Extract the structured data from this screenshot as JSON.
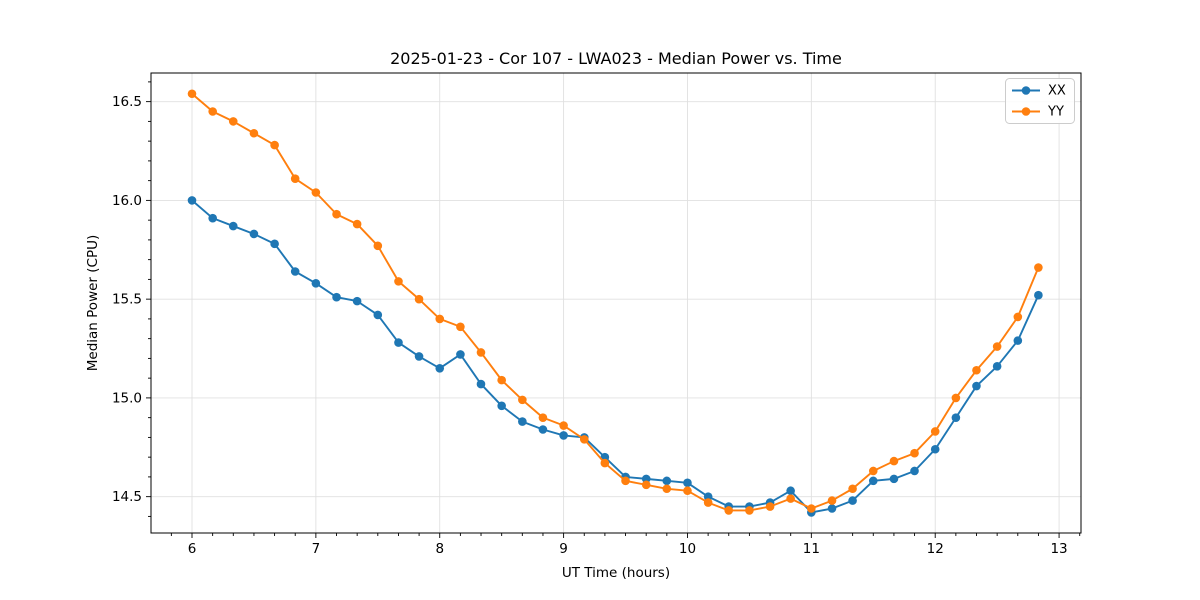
{
  "chart_data": {
    "type": "line",
    "title": "2025-01-23 - Cor 107 - LWA023 - Median Power vs. Time",
    "xlabel": "UT Time (hours)",
    "ylabel": "Median Power (CPU)",
    "grid": true,
    "legend_position": "upper right",
    "xlim": [
      5.669,
      13.177
    ],
    "ylim": [
      14.316,
      16.645
    ],
    "x_ticks": [
      6,
      7,
      8,
      9,
      10,
      11,
      12,
      13
    ],
    "x_tick_labels": [
      "6",
      "7",
      "8",
      "9",
      "10",
      "11",
      "12",
      "13"
    ],
    "y_ticks": [
      14.5,
      15.0,
      15.5,
      16.0,
      16.5
    ],
    "y_tick_labels": [
      "14.5",
      "15.0",
      "15.5",
      "16.0",
      "16.5"
    ],
    "x_minor_step": 0.166667,
    "y_minor_step": 0.1,
    "x": [
      6.0,
      6.167,
      6.333,
      6.5,
      6.667,
      6.833,
      7.0,
      7.167,
      7.333,
      7.5,
      7.667,
      7.833,
      8.0,
      8.167,
      8.333,
      8.5,
      8.667,
      8.833,
      9.0,
      9.167,
      9.333,
      9.5,
      9.667,
      9.833,
      10.0,
      10.167,
      10.333,
      10.5,
      10.667,
      10.833,
      11.0,
      11.167,
      11.333,
      11.5,
      11.667,
      11.833,
      12.0,
      12.167,
      12.333,
      12.5,
      12.667,
      12.833
    ],
    "series": [
      {
        "name": "XX",
        "color": "#1f77b4",
        "values": [
          16.0,
          15.91,
          15.87,
          15.83,
          15.78,
          15.64,
          15.58,
          15.51,
          15.49,
          15.42,
          15.28,
          15.21,
          15.15,
          15.22,
          15.07,
          14.96,
          14.88,
          14.84,
          14.81,
          14.8,
          14.7,
          14.6,
          14.59,
          14.58,
          14.57,
          14.5,
          14.45,
          14.45,
          14.47,
          14.53,
          14.42,
          14.44,
          14.48,
          14.58,
          14.59,
          14.63,
          14.74,
          14.9,
          15.06,
          15.16,
          15.29,
          15.52
        ]
      },
      {
        "name": "YY",
        "color": "#ff7f0e",
        "values": [
          16.54,
          16.45,
          16.4,
          16.34,
          16.28,
          16.11,
          16.04,
          15.93,
          15.88,
          15.77,
          15.59,
          15.5,
          15.4,
          15.36,
          15.23,
          15.09,
          14.99,
          14.9,
          14.86,
          14.79,
          14.67,
          14.58,
          14.56,
          14.54,
          14.53,
          14.47,
          14.43,
          14.43,
          14.45,
          14.49,
          14.44,
          14.48,
          14.54,
          14.63,
          14.68,
          14.72,
          14.83,
          15.0,
          15.14,
          15.26,
          15.41,
          15.66
        ]
      }
    ],
    "colors": {
      "grid": "#e0e0e0",
      "spine": "#000000",
      "text": "#000000"
    }
  }
}
